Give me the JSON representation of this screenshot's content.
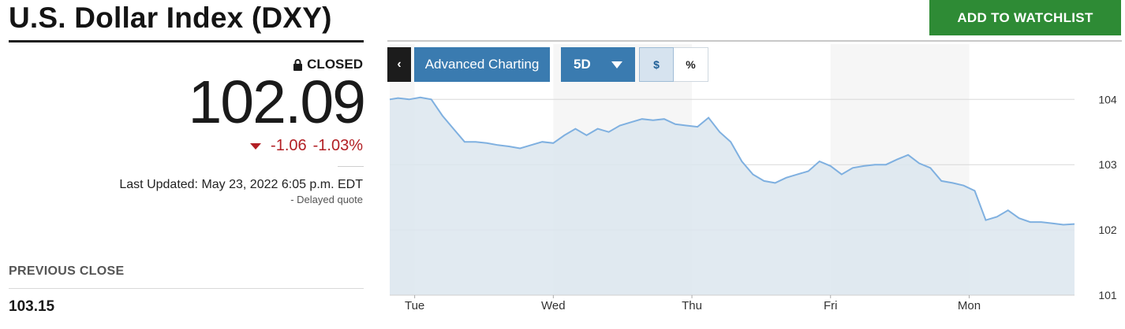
{
  "header": {
    "title": "U.S. Dollar Index (DXY)",
    "watchlist_label": "ADD TO WATCHLIST"
  },
  "quote": {
    "status": "CLOSED",
    "price": "102.09",
    "change": "-1.06",
    "change_percent": "-1.03%",
    "last_updated": "Last Updated: May 23, 2022 6:05 p.m. EDT",
    "delayed": "-  Delayed quote",
    "previous_close_label": "PREVIOUS CLOSE",
    "previous_close_value": "103.15"
  },
  "toolbar": {
    "back_label": "‹",
    "advanced_label": "Advanced Charting",
    "range_label": "5D",
    "dollar_label": "$",
    "percent_label": "%"
  },
  "colors": {
    "accent": "#3a7bb0",
    "watchlist": "#2e8b35",
    "negative": "#b21f24",
    "line": "#7fb0e0",
    "area": "#dce6ee"
  },
  "chart_data": {
    "type": "area",
    "ylim": [
      101,
      104.1
    ],
    "y_ticks": [
      "104",
      "103",
      "102",
      "101"
    ],
    "y_tick_values": [
      104,
      103,
      102,
      101
    ],
    "x_tick_labels": [
      "Tue",
      "Wed",
      "Thu",
      "Fri",
      "Mon"
    ],
    "x_tick_values": [
      1.2,
      6.2,
      11.2,
      16.2,
      21.2
    ],
    "xlim": [
      0.3,
      25
    ],
    "grid": true,
    "x": [
      0.3,
      0.6,
      1.0,
      1.4,
      1.8,
      2.2,
      2.6,
      3.0,
      3.4,
      3.8,
      4.2,
      4.6,
      5.0,
      5.4,
      5.8,
      6.2,
      6.6,
      7.0,
      7.4,
      7.8,
      8.2,
      8.6,
      9.0,
      9.4,
      9.8,
      10.2,
      10.6,
      11.0,
      11.4,
      11.8,
      12.2,
      12.6,
      13.0,
      13.4,
      13.8,
      14.2,
      14.6,
      15.0,
      15.4,
      15.8,
      16.2,
      16.6,
      17.0,
      17.4,
      17.8,
      18.2,
      18.6,
      19.0,
      19.4,
      19.8,
      20.2,
      20.6,
      21.0,
      21.4,
      21.8,
      22.2,
      22.6,
      23.0,
      23.4,
      23.8,
      24.2,
      24.6,
      25.0
    ],
    "y": [
      104.0,
      104.02,
      104.0,
      104.03,
      104.0,
      103.75,
      103.55,
      103.35,
      103.35,
      103.33,
      103.3,
      103.28,
      103.25,
      103.3,
      103.35,
      103.33,
      103.45,
      103.55,
      103.45,
      103.55,
      103.5,
      103.6,
      103.65,
      103.7,
      103.68,
      103.7,
      103.62,
      103.6,
      103.58,
      103.72,
      103.5,
      103.35,
      103.05,
      102.85,
      102.75,
      102.72,
      102.8,
      102.85,
      102.9,
      103.05,
      102.98,
      102.85,
      102.95,
      102.98,
      103.0,
      103.0,
      103.08,
      103.15,
      103.02,
      102.95,
      102.75,
      102.72,
      102.68,
      102.6,
      102.15,
      102.2,
      102.3,
      102.18,
      102.12,
      102.12,
      102.1,
      102.08,
      102.09
    ]
  }
}
